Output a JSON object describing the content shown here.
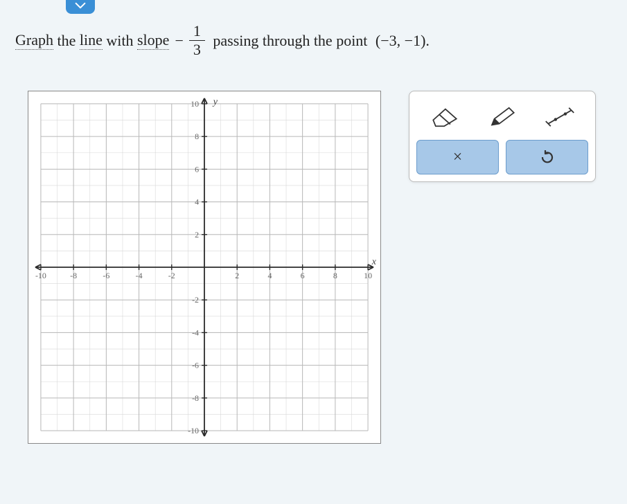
{
  "instruction": {
    "w1_u": "Graph",
    "w2": " the ",
    "w3_u": "line",
    "w4": " with ",
    "w5_u": "slope",
    "slope_sign": "−",
    "slope_num": "1",
    "slope_den": "3",
    "w6": " passing through the point ",
    "point": "(−3, −1)."
  },
  "graph": {
    "type": "cartesian-grid",
    "xlim": [
      -10,
      10
    ],
    "ylim": [
      -10,
      10
    ],
    "major_step": 2,
    "minor_step": 1,
    "xlabel": "x",
    "ylabel": "y",
    "x_ticks": [
      -10,
      -8,
      -6,
      -4,
      -2,
      2,
      4,
      6,
      8,
      10
    ],
    "y_ticks": [
      -10,
      -8,
      -6,
      -4,
      -2,
      2,
      4,
      6,
      8,
      10
    ],
    "border_color": "#888888",
    "major_grid_color": "#b8b8b8",
    "minor_grid_color": "#d8d8d8",
    "axis_color": "#2a2a2a",
    "background_color": "#ffffff",
    "tick_label_color": "#666666",
    "tick_fontsize": 12
  },
  "toolbox": {
    "tools": [
      {
        "name": "eraser-icon"
      },
      {
        "name": "pencil-icon"
      },
      {
        "name": "line-segment-icon"
      }
    ],
    "actions": [
      {
        "name": "clear-button",
        "glyph": "×"
      },
      {
        "name": "reset-button",
        "glyph": "↺"
      }
    ],
    "button_bg": "#a7c8e8",
    "button_border": "#6b9ccc"
  }
}
